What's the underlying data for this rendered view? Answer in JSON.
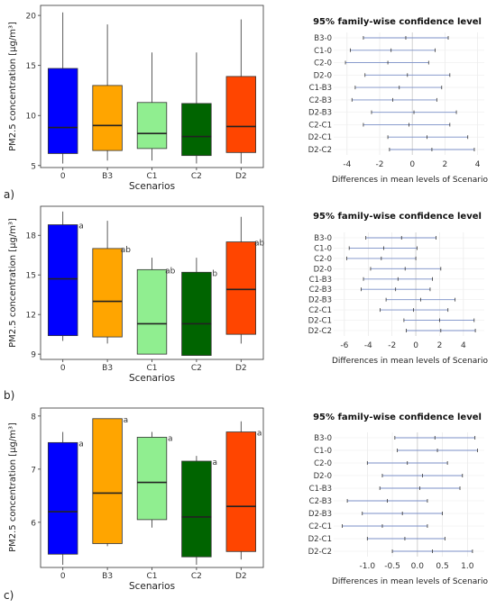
{
  "chart_data": [
    {
      "type": "boxplot",
      "panel_label": "a)",
      "ylabel": "PM2.5 concentration [µg/m³]",
      "xlabel": "Scenarios",
      "ylim": [
        4.8,
        21
      ],
      "yticks": [
        5,
        10,
        15,
        20
      ],
      "categories": [
        "0",
        "B3",
        "C1",
        "C2",
        "D2"
      ],
      "colors": [
        "#0000ff",
        "#ffa500",
        "#90ee90",
        "#006400",
        "#ff4500"
      ],
      "boxes": [
        {
          "min": 5.2,
          "q1": 6.2,
          "median": 8.8,
          "q3": 14.7,
          "max": 20.3
        },
        {
          "min": 5.5,
          "q1": 6.5,
          "median": 9.0,
          "q3": 13.0,
          "max": 19.1
        },
        {
          "min": 5.5,
          "q1": 6.7,
          "median": 8.2,
          "q3": 11.3,
          "max": 16.3
        },
        {
          "min": 5.2,
          "q1": 6.0,
          "median": 7.9,
          "q3": 11.2,
          "max": 16.3
        },
        {
          "min": 5.2,
          "q1": 6.3,
          "median": 8.9,
          "q3": 13.9,
          "max": 19.6
        }
      ],
      "letters": []
    },
    {
      "type": "boxplot",
      "panel_label": "b)",
      "ylabel": "PM2.5 concentration [µg/m³]",
      "xlabel": "Scenarios",
      "ylim": [
        8.6,
        20.2
      ],
      "yticks": [
        9,
        12,
        15,
        18
      ],
      "categories": [
        "0",
        "B3",
        "C1",
        "C2",
        "D2"
      ],
      "colors": [
        "#0000ff",
        "#ffa500",
        "#90ee90",
        "#006400",
        "#ff4500"
      ],
      "boxes": [
        {
          "min": 10.0,
          "q1": 10.4,
          "median": 14.7,
          "q3": 18.8,
          "max": 19.8
        },
        {
          "min": 9.8,
          "q1": 10.3,
          "median": 13.0,
          "q3": 17.0,
          "max": 19.1
        },
        {
          "min": 9.0,
          "q1": 9.0,
          "median": 11.3,
          "q3": 15.4,
          "max": 16.3
        },
        {
          "min": 8.9,
          "q1": 8.9,
          "median": 11.3,
          "q3": 15.2,
          "max": 16.3
        },
        {
          "min": 9.8,
          "q1": 10.5,
          "median": 13.9,
          "q3": 17.5,
          "max": 19.4
        }
      ],
      "letters": [
        "a",
        "ab",
        "ab",
        "b",
        "ab"
      ]
    },
    {
      "type": "boxplot",
      "panel_label": "c)",
      "ylabel": "PM2.5 concentration [µg/m³]",
      "xlabel": "Scenarios",
      "ylim": [
        5.15,
        8.15
      ],
      "yticks": [
        6,
        7,
        8
      ],
      "categories": [
        "0",
        "B3",
        "C1",
        "C2",
        "D2"
      ],
      "colors": [
        "#0000ff",
        "#ffa500",
        "#90ee90",
        "#006400",
        "#ff4500"
      ],
      "boxes": [
        {
          "min": 5.2,
          "q1": 5.4,
          "median": 6.2,
          "q3": 7.5,
          "max": 7.7
        },
        {
          "min": 5.55,
          "q1": 5.6,
          "median": 6.55,
          "q3": 7.95,
          "max": 7.95
        },
        {
          "min": 5.9,
          "q1": 6.05,
          "median": 6.75,
          "q3": 7.6,
          "max": 7.7
        },
        {
          "min": 5.2,
          "q1": 5.35,
          "median": 6.1,
          "q3": 7.15,
          "max": 7.25
        },
        {
          "min": 5.3,
          "q1": 5.45,
          "median": 6.3,
          "q3": 7.7,
          "max": 7.9
        }
      ],
      "letters": [
        "a",
        "a",
        "a",
        "a",
        "a"
      ]
    },
    {
      "type": "interval",
      "title": "95% family-wise confidence level",
      "xlabel": "Differences in mean levels of Scenario",
      "xlim": [
        -4.6,
        4.3
      ],
      "xticks": [
        -4,
        -2,
        0,
        2,
        4
      ],
      "categories": [
        "B3-0",
        "C1-0",
        "C2-0",
        "D2-0",
        "C1-B3",
        "C2-B3",
        "D2-B3",
        "C2-C1",
        "D2-C1",
        "D2-C2"
      ],
      "intervals": [
        {
          "lwr": -3.0,
          "est": -0.4,
          "upr": 2.2
        },
        {
          "lwr": -3.8,
          "est": -1.3,
          "upr": 1.4
        },
        {
          "lwr": -4.1,
          "est": -1.5,
          "upr": 1.0
        },
        {
          "lwr": -2.9,
          "est": -0.3,
          "upr": 2.3
        },
        {
          "lwr": -3.5,
          "est": -0.8,
          "upr": 1.8
        },
        {
          "lwr": -3.7,
          "est": -1.2,
          "upr": 1.5
        },
        {
          "lwr": -2.5,
          "est": 0.1,
          "upr": 2.7
        },
        {
          "lwr": -3.0,
          "est": -0.2,
          "upr": 2.3
        },
        {
          "lwr": -1.5,
          "est": 0.9,
          "upr": 3.4
        },
        {
          "lwr": -1.4,
          "est": 1.2,
          "upr": 3.8
        }
      ]
    },
    {
      "type": "interval",
      "title": "95% family-wise confidence level",
      "xlabel": "Differences in mean levels of Scenario",
      "xlim": [
        -6.6,
        5.6
      ],
      "xticks": [
        -6,
        -4,
        -2,
        0,
        2,
        4
      ],
      "categories": [
        "B3-0",
        "C1-0",
        "C2-0",
        "D2-0",
        "C1-B3",
        "C2-B3",
        "D2-B3",
        "C2-C1",
        "D2-C1",
        "D2-C2"
      ],
      "intervals": [
        {
          "lwr": -4.2,
          "est": -1.2,
          "upr": 1.7
        },
        {
          "lwr": -5.6,
          "est": -2.7,
          "upr": 0.1
        },
        {
          "lwr": -5.8,
          "est": -2.9,
          "upr": 0.0
        },
        {
          "lwr": -3.8,
          "est": -0.9,
          "upr": 2.1
        },
        {
          "lwr": -4.4,
          "est": -1.5,
          "upr": 1.4
        },
        {
          "lwr": -4.6,
          "est": -1.7,
          "upr": 1.2
        },
        {
          "lwr": -2.5,
          "est": 0.4,
          "upr": 3.3
        },
        {
          "lwr": -3.0,
          "est": -0.2,
          "upr": 2.7
        },
        {
          "lwr": -1.0,
          "est": 2.0,
          "upr": 4.9
        },
        {
          "lwr": -0.8,
          "est": 2.1,
          "upr": 5.0
        }
      ]
    },
    {
      "type": "interval",
      "title": "95% family-wise confidence level",
      "xlabel": "Differences in mean levels of Scenario",
      "xlim": [
        -1.6,
        1.3
      ],
      "xticks": [
        -1.0,
        -0.5,
        0.0,
        0.5,
        1.0
      ],
      "tick_labels": [
        "-1.0",
        "-0.5",
        "0.0",
        "0.5",
        "1.0"
      ],
      "categories": [
        "B3-0",
        "C1-0",
        "C2-0",
        "D2-0",
        "C1-B3",
        "C2-B3",
        "D2-B3",
        "C2-C1",
        "D2-C1",
        "D2-C2"
      ],
      "intervals": [
        {
          "lwr": -0.45,
          "est": 0.35,
          "upr": 1.15
        },
        {
          "lwr": -0.4,
          "est": 0.4,
          "upr": 1.2
        },
        {
          "lwr": -1.0,
          "est": -0.2,
          "upr": 0.6
        },
        {
          "lwr": -0.7,
          "est": 0.1,
          "upr": 0.9
        },
        {
          "lwr": -0.75,
          "est": 0.05,
          "upr": 0.85
        },
        {
          "lwr": -1.4,
          "est": -0.6,
          "upr": 0.2
        },
        {
          "lwr": -1.1,
          "est": -0.3,
          "upr": 0.5
        },
        {
          "lwr": -1.5,
          "est": -0.7,
          "upr": 0.2
        },
        {
          "lwr": -1.0,
          "est": -0.25,
          "upr": 0.55
        },
        {
          "lwr": -0.5,
          "est": 0.3,
          "upr": 1.1
        }
      ]
    }
  ]
}
